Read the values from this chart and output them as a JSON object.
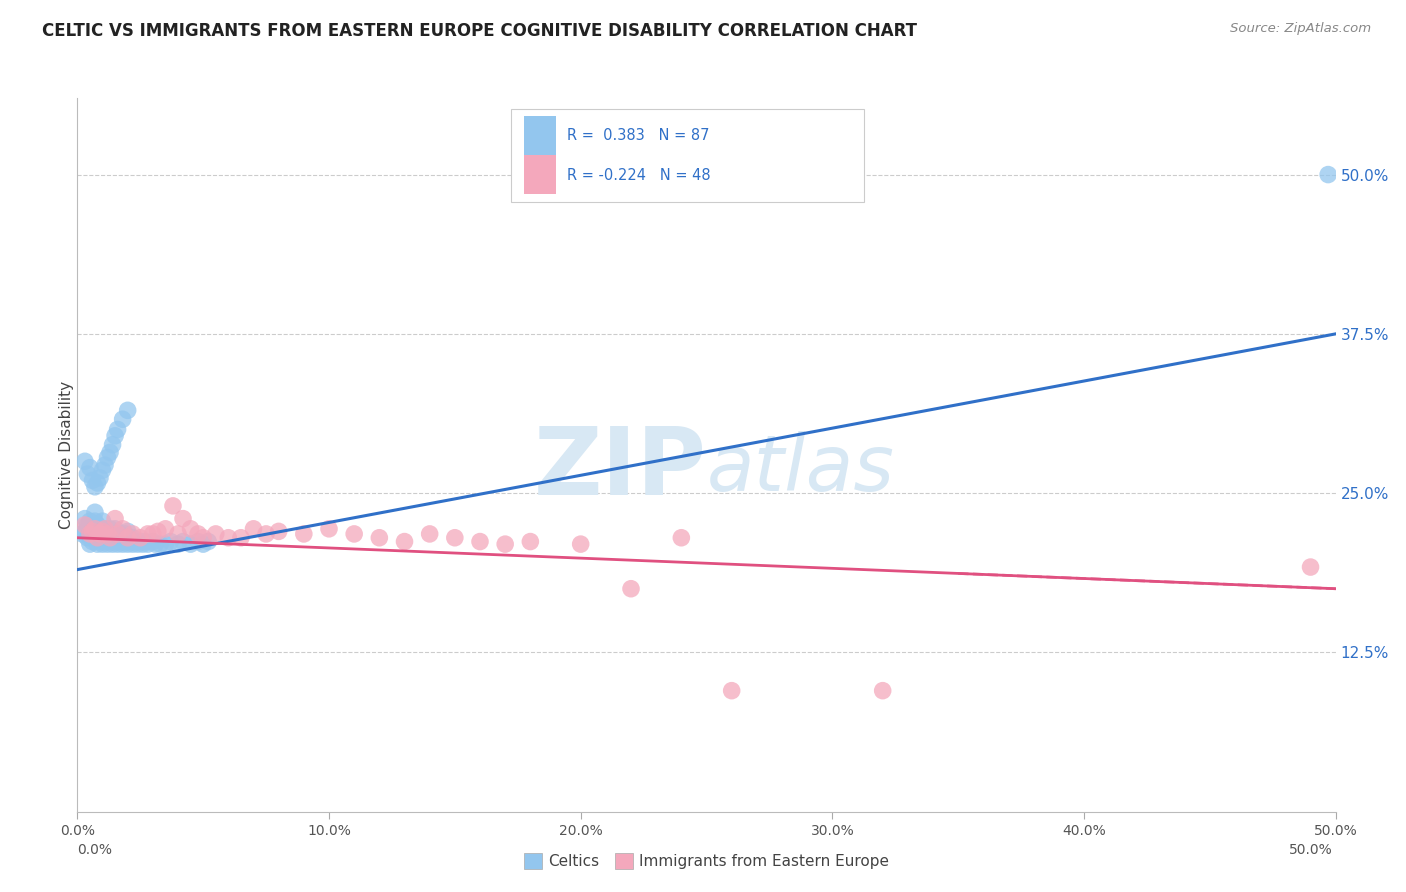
{
  "title": "CELTIC VS IMMIGRANTS FROM EASTERN EUROPE COGNITIVE DISABILITY CORRELATION CHART",
  "source": "Source: ZipAtlas.com",
  "ylabel": "Cognitive Disability",
  "yticks": [
    "12.5%",
    "25.0%",
    "37.5%",
    "50.0%"
  ],
  "ytick_values": [
    0.125,
    0.25,
    0.375,
    0.5
  ],
  "xrange": [
    0.0,
    0.5
  ],
  "yrange": [
    0.0,
    0.56
  ],
  "blue_R": "0.383",
  "blue_N": "87",
  "pink_R": "-0.224",
  "pink_N": "48",
  "blue_color": "#93C6EE",
  "pink_color": "#F4A8BC",
  "blue_line_color": "#3070C8",
  "pink_line_color": "#E05080",
  "watermark_color": "#D8E8F4",
  "legend_label_blue": "Celtics",
  "legend_label_pink": "Immigrants from Eastern Europe",
  "blue_scatter_x": [
    0.002,
    0.003,
    0.003,
    0.004,
    0.004,
    0.005,
    0.005,
    0.005,
    0.006,
    0.006,
    0.006,
    0.007,
    0.007,
    0.007,
    0.007,
    0.008,
    0.008,
    0.008,
    0.009,
    0.009,
    0.009,
    0.01,
    0.01,
    0.01,
    0.01,
    0.011,
    0.011,
    0.011,
    0.012,
    0.012,
    0.012,
    0.013,
    0.013,
    0.013,
    0.014,
    0.014,
    0.015,
    0.015,
    0.015,
    0.016,
    0.016,
    0.017,
    0.017,
    0.018,
    0.018,
    0.019,
    0.019,
    0.02,
    0.02,
    0.02,
    0.021,
    0.022,
    0.022,
    0.023,
    0.024,
    0.025,
    0.026,
    0.027,
    0.028,
    0.03,
    0.031,
    0.033,
    0.035,
    0.037,
    0.04,
    0.042,
    0.045,
    0.048,
    0.05,
    0.052,
    0.003,
    0.004,
    0.005,
    0.006,
    0.007,
    0.008,
    0.009,
    0.01,
    0.011,
    0.012,
    0.013,
    0.014,
    0.015,
    0.016,
    0.018,
    0.02,
    0.497
  ],
  "blue_scatter_y": [
    0.218,
    0.22,
    0.23,
    0.215,
    0.225,
    0.21,
    0.22,
    0.228,
    0.212,
    0.218,
    0.222,
    0.215,
    0.22,
    0.228,
    0.235,
    0.21,
    0.218,
    0.225,
    0.212,
    0.218,
    0.222,
    0.21,
    0.215,
    0.22,
    0.228,
    0.212,
    0.218,
    0.222,
    0.21,
    0.215,
    0.22,
    0.212,
    0.218,
    0.222,
    0.21,
    0.215,
    0.212,
    0.218,
    0.222,
    0.21,
    0.215,
    0.212,
    0.218,
    0.21,
    0.215,
    0.212,
    0.218,
    0.21,
    0.215,
    0.22,
    0.212,
    0.21,
    0.215,
    0.212,
    0.21,
    0.212,
    0.21,
    0.212,
    0.21,
    0.212,
    0.21,
    0.21,
    0.21,
    0.212,
    0.21,
    0.212,
    0.21,
    0.212,
    0.21,
    0.212,
    0.275,
    0.265,
    0.27,
    0.26,
    0.255,
    0.258,
    0.262,
    0.268,
    0.272,
    0.278,
    0.282,
    0.288,
    0.295,
    0.3,
    0.308,
    0.315,
    0.5
  ],
  "pink_scatter_x": [
    0.003,
    0.005,
    0.006,
    0.007,
    0.008,
    0.009,
    0.01,
    0.011,
    0.012,
    0.013,
    0.015,
    0.016,
    0.018,
    0.02,
    0.022,
    0.025,
    0.028,
    0.03,
    0.032,
    0.035,
    0.038,
    0.04,
    0.042,
    0.045,
    0.048,
    0.05,
    0.055,
    0.06,
    0.065,
    0.07,
    0.075,
    0.08,
    0.09,
    0.1,
    0.11,
    0.12,
    0.13,
    0.14,
    0.15,
    0.16,
    0.17,
    0.18,
    0.2,
    0.22,
    0.24,
    0.26,
    0.32,
    0.49
  ],
  "pink_scatter_y": [
    0.225,
    0.218,
    0.22,
    0.222,
    0.215,
    0.218,
    0.22,
    0.222,
    0.218,
    0.215,
    0.23,
    0.218,
    0.222,
    0.215,
    0.218,
    0.215,
    0.218,
    0.218,
    0.22,
    0.222,
    0.24,
    0.218,
    0.23,
    0.222,
    0.218,
    0.215,
    0.218,
    0.215,
    0.215,
    0.222,
    0.218,
    0.22,
    0.218,
    0.222,
    0.218,
    0.215,
    0.212,
    0.218,
    0.215,
    0.212,
    0.21,
    0.212,
    0.21,
    0.175,
    0.215,
    0.095,
    0.095,
    0.192
  ],
  "blue_line_y_start": 0.19,
  "blue_line_y_end": 0.375,
  "pink_line_y_start": 0.215,
  "pink_line_y_end": 0.175,
  "grid_color": "#CCCCCC",
  "background_color": "#FFFFFF"
}
